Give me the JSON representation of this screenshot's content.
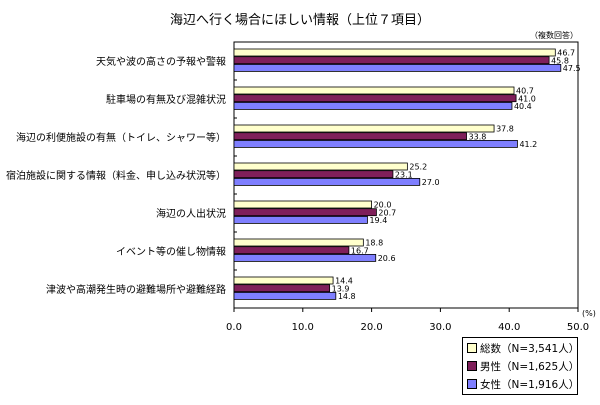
{
  "chart_data": {
    "type": "bar",
    "orientation": "horizontal",
    "title": "海辺へ行く場合にほしい情報（上位７項目）",
    "note": "（複数回答）",
    "xlabel": "",
    "x_unit": "(%)",
    "xlim": [
      0,
      50
    ],
    "x_ticks": [
      "0.0",
      "10.0",
      "20.0",
      "30.0",
      "40.0",
      "50.0"
    ],
    "x_tick_values": [
      0,
      10,
      20,
      30,
      40,
      50
    ],
    "categories": [
      "天気や波の高さの予報や警報",
      "駐車場の有無及び混雑状況",
      "海辺の利便施設の有無（トイレ、シャワー等）",
      "宿泊施設に関する情報（料金、申し込み状況等）",
      "海辺の人出状況",
      "イベント等の催し物情報",
      "津波や高潮発生時の避難場所や避難経路"
    ],
    "series": [
      {
        "name": "総数（N=3,541人）",
        "color": "#ffffcc",
        "values": [
          46.7,
          40.7,
          37.8,
          25.2,
          20.0,
          18.8,
          14.4
        ]
      },
      {
        "name": "男性（N=1,625人）",
        "color": "#7f1f5a",
        "values": [
          45.8,
          41.0,
          33.8,
          23.1,
          20.7,
          16.7,
          13.9
        ]
      },
      {
        "name": "女性（N=1,916人）",
        "color": "#7f7fff",
        "values": [
          47.5,
          40.4,
          41.2,
          27.0,
          19.4,
          20.6,
          14.8
        ]
      }
    ],
    "legend_position": "bottom-right",
    "grid": false
  }
}
